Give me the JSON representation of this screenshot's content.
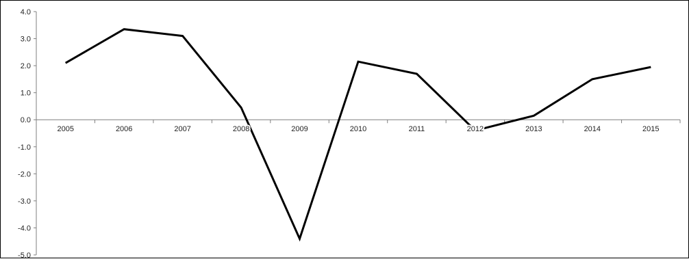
{
  "chart_data": {
    "type": "line",
    "title": "",
    "xlabel": "",
    "ylabel": "",
    "categories": [
      "2005",
      "2006",
      "2007",
      "2008",
      "2009",
      "2010",
      "2011",
      "2012",
      "2013",
      "2014",
      "2015"
    ],
    "series": [
      {
        "values": [
          2.1,
          3.35,
          3.1,
          0.45,
          -4.4,
          2.15,
          1.7,
          -0.4,
          0.15,
          1.5,
          1.95
        ],
        "color": "#000000"
      }
    ],
    "ylim": [
      -5.0,
      4.0
    ],
    "y_ticks": [
      "4.0",
      "3.0",
      "2.0",
      "1.0",
      "0.0",
      "-1.0",
      "-2.0",
      "-3.0",
      "-4.0",
      "-5.0"
    ],
    "grid": false,
    "legend": "none",
    "category_axis_position": "at zero"
  }
}
